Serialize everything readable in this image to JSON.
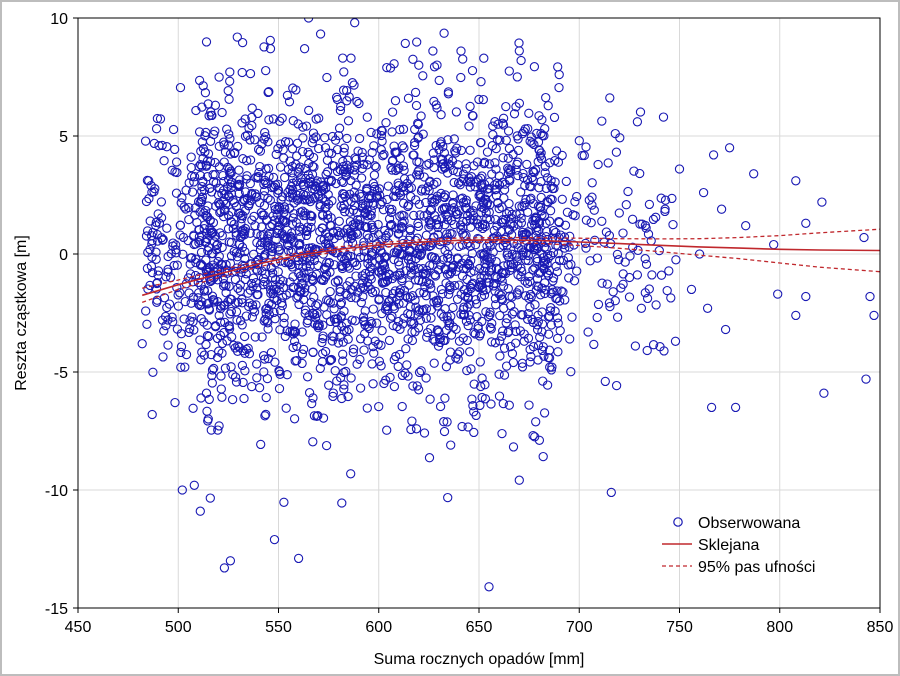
{
  "chart_data": {
    "type": "scatter",
    "title": "",
    "xlabel": "Suma rocznych opadów [mm]",
    "ylabel": "Reszta cząstkowa [m]",
    "xlim": [
      450,
      850
    ],
    "ylim": [
      -15,
      10
    ],
    "xticks": [
      "450",
      "500",
      "550",
      "600",
      "650",
      "700",
      "750",
      "800",
      "850"
    ],
    "yticks": [
      "-15",
      "-10",
      "-5",
      "0",
      "5",
      "10"
    ],
    "grid": true,
    "legend_position": "bottom-right",
    "colors": {
      "points": "#1a1ab4",
      "fit": "#c0282d",
      "band": "#c0282d",
      "grid": "#d9d9d9"
    },
    "series": [
      {
        "name": "Obserwowana",
        "kind": "scatter-circles",
        "note_points": [
          [
            492,
            4.6
          ],
          [
            486,
            1.4
          ],
          [
            482,
            -3.8
          ],
          [
            487,
            -6.8
          ],
          [
            502,
            -10.0
          ],
          [
            508,
            -9.8
          ],
          [
            511,
            -10.9
          ],
          [
            523,
            -13.3
          ],
          [
            526,
            -13.0
          ],
          [
            548,
            -12.1
          ],
          [
            560,
            -12.9
          ],
          [
            655,
            -14.1
          ],
          [
            565,
            10.0
          ],
          [
            588,
            9.8
          ],
          [
            546,
            8.7
          ],
          [
            563,
            8.7
          ],
          [
            582,
            8.3
          ],
          [
            620,
            8.0
          ],
          [
            627,
            8.6
          ],
          [
            641,
            8.6
          ],
          [
            671,
            8.2
          ],
          [
            604,
            7.9
          ],
          [
            651,
            7.3
          ],
          [
            690,
            7.6
          ],
          [
            742,
            5.8
          ],
          [
            767,
            4.2
          ],
          [
            775,
            4.5
          ],
          [
            787,
            3.4
          ],
          [
            808,
            3.1
          ],
          [
            813,
            1.3
          ],
          [
            821,
            2.2
          ],
          [
            842,
            0.7
          ],
          [
            845,
            -1.8
          ],
          [
            847,
            -2.6
          ],
          [
            843,
            -5.3
          ],
          [
            822,
            -5.9
          ],
          [
            813,
            -1.8
          ],
          [
            808,
            -2.6
          ],
          [
            799,
            -1.7
          ],
          [
            778,
            -6.5
          ],
          [
            766,
            -6.5
          ],
          [
            773,
            -3.2
          ],
          [
            716,
            -10.1
          ],
          [
            713,
            -5.4
          ],
          [
            760,
            0.0
          ],
          [
            797,
            0.4
          ],
          [
            729,
            5.6
          ],
          [
            700,
            4.8
          ],
          [
            718,
            5.1
          ],
          [
            735,
            2.1
          ],
          [
            750,
            3.6
          ],
          [
            762,
            2.6
          ],
          [
            741,
            -0.9
          ],
          [
            731,
            -2.3
          ],
          [
            756,
            -1.5
          ],
          [
            771,
            1.9
          ],
          [
            728,
            -3.9
          ],
          [
            748,
            -3.7
          ],
          [
            764,
            -2.3
          ],
          [
            783,
            1.2
          ]
        ]
      },
      {
        "name": "Sklejana",
        "kind": "line",
        "x": [
          482,
          500,
          520,
          540,
          560,
          580,
          600,
          620,
          640,
          660,
          680,
          700,
          720,
          740,
          760,
          780,
          800,
          820,
          850
        ],
        "values": [
          -1.75,
          -1.3,
          -0.85,
          -0.42,
          -0.05,
          0.2,
          0.38,
          0.5,
          0.58,
          0.6,
          0.57,
          0.51,
          0.44,
          0.37,
          0.3,
          0.25,
          0.2,
          0.17,
          0.15
        ]
      },
      {
        "name": "95% pas ufności",
        "kind": "dashed-band",
        "x": [
          482,
          500,
          520,
          540,
          560,
          580,
          600,
          620,
          640,
          660,
          680,
          700,
          720,
          740,
          760,
          780,
          800,
          820,
          850
        ],
        "upper": [
          -1.45,
          -1.1,
          -0.7,
          -0.3,
          0.05,
          0.3,
          0.48,
          0.6,
          0.68,
          0.7,
          0.69,
          0.67,
          0.65,
          0.64,
          0.65,
          0.7,
          0.78,
          0.9,
          1.05
        ],
        "lower": [
          -2.05,
          -1.5,
          -1.0,
          -0.55,
          -0.15,
          0.1,
          0.28,
          0.4,
          0.48,
          0.5,
          0.45,
          0.36,
          0.24,
          0.1,
          -0.05,
          -0.2,
          -0.38,
          -0.56,
          -0.75
        ]
      }
    ]
  },
  "legend": {
    "observed": "Obserwowana",
    "fit": "Sklejana",
    "band": "95% pas ufności"
  }
}
